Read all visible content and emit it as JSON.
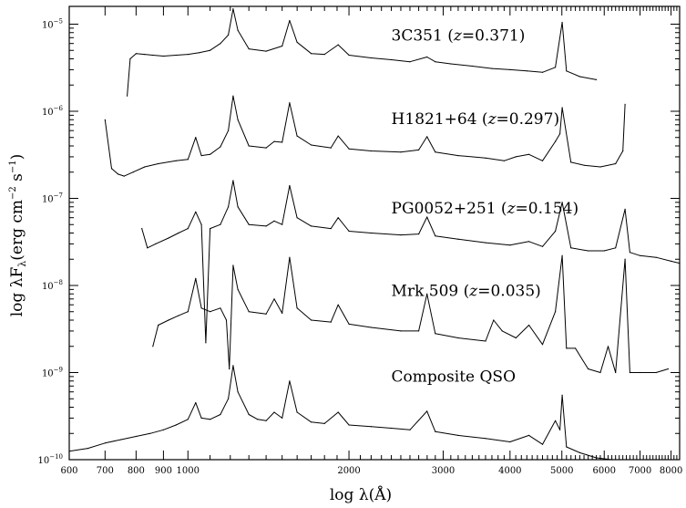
{
  "chart_data": {
    "type": "line",
    "xlabel": "log  λ(Å)",
    "ylabel": "log  λF",
    "ylabel_sub": "λ",
    "ylabel_units": "(erg cm",
    "ylabel_exp1": "−2",
    "ylabel_mid": " s",
    "ylabel_exp2": "−1",
    "ylabel_end": ")",
    "x_scale": "log",
    "y_scale": "log",
    "xlim": [
      600,
      8300
    ],
    "ylim": [
      1e-10,
      1.6e-05
    ],
    "x_ticks": [
      {
        "value": 600,
        "label": "600"
      },
      {
        "value": 700,
        "label": "700"
      },
      {
        "value": 800,
        "label": "800"
      },
      {
        "value": 900,
        "label": "900"
      },
      {
        "value": 1000,
        "label": "1000"
      },
      {
        "value": 2000,
        "label": "2000"
      },
      {
        "value": 3000,
        "label": "3000"
      },
      {
        "value": 4000,
        "label": "4000"
      },
      {
        "value": 5000,
        "label": "5000"
      },
      {
        "value": 6000,
        "label": "6000"
      },
      {
        "value": 7000,
        "label": "7000"
      },
      {
        "value": 8000,
        "label": "8000"
      }
    ],
    "y_ticks": [
      {
        "value": 1e-10,
        "label": "10",
        "exp": "−10"
      },
      {
        "value": 1e-09,
        "label": "10",
        "exp": "−9"
      },
      {
        "value": 1e-08,
        "label": "10",
        "exp": "−8"
      },
      {
        "value": 1e-07,
        "label": "10",
        "exp": "−7"
      },
      {
        "value": 1e-06,
        "label": "10",
        "exp": "−6"
      },
      {
        "value": 1e-05,
        "label": "10",
        "exp": "−5"
      }
    ],
    "series": [
      {
        "name": "3C351  (z=0.371)",
        "label_parts": [
          "3C351  (",
          "z",
          "=0.371)"
        ],
        "label_anchor": [
          2400,
          6.5e-06
        ],
        "x": [
          770,
          780,
          800,
          830,
          860,
          900,
          950,
          1000,
          1050,
          1100,
          1150,
          1190,
          1215,
          1240,
          1300,
          1400,
          1500,
          1549,
          1600,
          1700,
          1800,
          1909,
          2000,
          2200,
          2400,
          2600,
          2798,
          2900,
          3100,
          3400,
          3700,
          4000,
          4300,
          4600,
          4861,
          5007,
          5100,
          5400,
          5800
        ],
        "y": [
          1.5e-06,
          4e-06,
          4.6e-06,
          4.5e-06,
          4.4e-06,
          4.3e-06,
          4.4e-06,
          4.5e-06,
          4.7e-06,
          5e-06,
          6e-06,
          7.5e-06,
          1.5e-05,
          8.5e-06,
          5.2e-06,
          4.9e-06,
          5.6e-06,
          1.1e-05,
          6.2e-06,
          4.6e-06,
          4.5e-06,
          5.8e-06,
          4.4e-06,
          4.1e-06,
          3.9e-06,
          3.7e-06,
          4.2e-06,
          3.7e-06,
          3.5e-06,
          3.3e-06,
          3.1e-06,
          3e-06,
          2.9e-06,
          2.8e-06,
          3.2e-06,
          1.05e-05,
          2.9e-06,
          2.5e-06,
          2.3e-06
        ]
      },
      {
        "name": "H1821+64  (z=0.297)",
        "label_parts": [
          "H1821+64  (",
          "z",
          "=0.297)"
        ],
        "label_anchor": [
          2400,
          7.1e-07
        ],
        "x": [
          700,
          720,
          740,
          760,
          790,
          830,
          880,
          950,
          1000,
          1034,
          1060,
          1100,
          1150,
          1190,
          1215,
          1240,
          1300,
          1400,
          1450,
          1500,
          1549,
          1600,
          1700,
          1850,
          1909,
          2000,
          2200,
          2500,
          2700,
          2798,
          2900,
          3200,
          3600,
          3900,
          4102,
          4340,
          4600,
          4861,
          4959,
          5007,
          5200,
          5500,
          5900,
          6300,
          6500,
          6563
        ],
        "y": [
          8e-07,
          2.2e-07,
          1.9e-07,
          1.8e-07,
          2e-07,
          2.3e-07,
          2.5e-07,
          2.7e-07,
          2.8e-07,
          5e-07,
          3.1e-07,
          3.2e-07,
          3.9e-07,
          6e-07,
          1.5e-06,
          8e-07,
          4e-07,
          3.8e-07,
          4.5e-07,
          4.4e-07,
          1.25e-06,
          5.2e-07,
          4.1e-07,
          3.8e-07,
          5.2e-07,
          3.7e-07,
          3.5e-07,
          3.4e-07,
          3.6e-07,
          5.1e-07,
          3.4e-07,
          3.1e-07,
          2.9e-07,
          2.7e-07,
          3e-07,
          3.2e-07,
          2.7e-07,
          4.5e-07,
          5.5e-07,
          1.1e-06,
          2.6e-07,
          2.4e-07,
          2.3e-07,
          2.5e-07,
          3.5e-07,
          1.2e-06
        ]
      },
      {
        "name": "PG0052+251  (z=0.154)",
        "label_parts": [
          "PG0052+251  (",
          "z",
          "=0.154)"
        ],
        "label_anchor": [
          2400,
          6.7e-08
        ],
        "x": [
          820,
          840,
          870,
          920,
          960,
          1000,
          1034,
          1060,
          1080,
          1100,
          1150,
          1190,
          1215,
          1240,
          1300,
          1400,
          1450,
          1500,
          1549,
          1600,
          1700,
          1850,
          1909,
          2000,
          2200,
          2500,
          2700,
          2798,
          2900,
          3200,
          3600,
          4000,
          4340,
          4600,
          4861,
          5007,
          5200,
          5600,
          6000,
          6300,
          6563,
          6700,
          7000,
          7500,
          8000,
          8300
        ],
        "y": [
          4.5e-08,
          2.7e-08,
          3e-08,
          3.5e-08,
          4e-08,
          4.5e-08,
          7e-08,
          5e-08,
          2.2e-09,
          4.5e-08,
          5e-08,
          8e-08,
          1.6e-07,
          8e-08,
          5e-08,
          4.8e-08,
          5.5e-08,
          5e-08,
          1.4e-07,
          6e-08,
          4.8e-08,
          4.5e-08,
          6e-08,
          4.2e-08,
          4e-08,
          3.8e-08,
          3.9e-08,
          6.1e-08,
          3.7e-08,
          3.4e-08,
          3.1e-08,
          2.9e-08,
          3.2e-08,
          2.8e-08,
          4.2e-08,
          9e-08,
          2.7e-08,
          2.5e-08,
          2.5e-08,
          2.7e-08,
          7.5e-08,
          2.4e-08,
          2.2e-08,
          2.1e-08,
          1.9e-08,
          1.8e-08
        ]
      },
      {
        "name": "Mrk 509  (z=0.035)",
        "label_parts": [
          "Mrk 509  (",
          "z",
          "=0.035)"
        ],
        "label_anchor": [
          2400,
          7.6e-09
        ],
        "x": [
          860,
          880,
          920,
          960,
          1000,
          1034,
          1060,
          1100,
          1150,
          1180,
          1195,
          1215,
          1240,
          1300,
          1400,
          1450,
          1500,
          1549,
          1600,
          1700,
          1850,
          1909,
          2000,
          2200,
          2500,
          2700,
          2798,
          2900,
          3200,
          3600,
          3727,
          3869,
          4102,
          4340,
          4600,
          4861,
          5007,
          5100,
          5300,
          5600,
          5900,
          6100,
          6300,
          6563,
          6700,
          7000,
          7500,
          7900
        ],
        "y": [
          2e-09,
          3.5e-09,
          4e-09,
          4.5e-09,
          5e-09,
          1.2e-08,
          5.5e-09,
          5e-09,
          5.5e-09,
          4e-09,
          1.1e-09,
          1.7e-08,
          9e-09,
          5e-09,
          4.7e-09,
          7e-09,
          4.8e-09,
          2.1e-08,
          5.5e-09,
          4e-09,
          3.8e-09,
          6e-09,
          3.6e-09,
          3.3e-09,
          3e-09,
          3e-09,
          8e-09,
          2.8e-09,
          2.5e-09,
          2.3e-09,
          4e-09,
          3e-09,
          2.5e-09,
          3.5e-09,
          2.1e-09,
          5e-09,
          2.2e-08,
          1.9e-09,
          1.9e-09,
          1.1e-09,
          1e-09,
          2e-09,
          1e-09,
          2e-08,
          1e-09,
          1e-09,
          1e-09,
          1.1e-09
        ]
      },
      {
        "name": "Composite QSO",
        "label_parts": [
          "Composite QSO",
          "",
          ""
        ],
        "label_anchor": [
          2400,
          7.9e-10
        ],
        "x": [
          600,
          650,
          700,
          750,
          800,
          850,
          900,
          950,
          1000,
          1034,
          1060,
          1100,
          1150,
          1190,
          1215,
          1240,
          1300,
          1350,
          1400,
          1450,
          1500,
          1549,
          1600,
          1700,
          1800,
          1909,
          2000,
          2200,
          2400,
          2600,
          2798,
          2900,
          3200,
          3600,
          4000,
          4340,
          4600,
          4861,
          4959,
          5007,
          5100,
          5400,
          5800,
          6200
        ],
        "y": [
          1.25e-10,
          1.35e-10,
          1.55e-10,
          1.7e-10,
          1.85e-10,
          2e-10,
          2.2e-10,
          2.5e-10,
          2.9e-10,
          4.5e-10,
          3e-10,
          2.9e-10,
          3.3e-10,
          5e-10,
          1.2e-09,
          6e-10,
          3.3e-10,
          2.9e-10,
          2.8e-10,
          3.5e-10,
          3e-10,
          8e-10,
          3.5e-10,
          2.7e-10,
          2.6e-10,
          3.5e-10,
          2.5e-10,
          2.4e-10,
          2.3e-10,
          2.2e-10,
          3.6e-10,
          2.1e-10,
          1.9e-10,
          1.75e-10,
          1.6e-10,
          1.9e-10,
          1.5e-10,
          2.8e-10,
          2.2e-10,
          5.5e-10,
          1.4e-10,
          1.2e-10,
          1.05e-10,
          1e-10
        ]
      }
    ]
  }
}
